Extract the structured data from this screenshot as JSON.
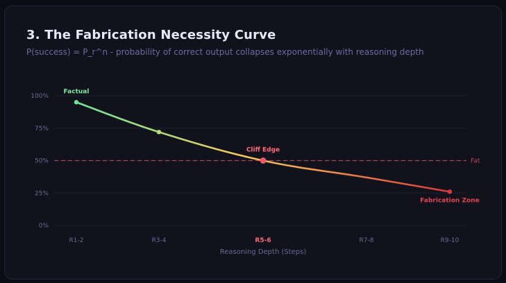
{
  "header": {
    "title": "3. The Fabrication Necessity Curve",
    "subtitle": "P(success) = P_r^n - probability of correct output collapses exponentially with reasoning depth"
  },
  "chart_data": {
    "type": "line",
    "xlabel": "Reasoning Depth (Steps)",
    "ylabel": "",
    "categories": [
      "R1-2",
      "R3-4",
      "R5-6",
      "R7-8",
      "R9-10"
    ],
    "highlight_category": "R5-6",
    "y_ticks": [
      "0%",
      "25%",
      "50%",
      "75%",
      "100%"
    ],
    "ylim": [
      0,
      100
    ],
    "grid": true,
    "series": [
      {
        "values": [
          95,
          72,
          50,
          37,
          26
        ]
      }
    ],
    "threshold": {
      "value": 50,
      "label": "Fat",
      "color": "#c0475a"
    },
    "annotations": [
      {
        "index": 0,
        "text": "Factual",
        "color": "#7ee8a2"
      },
      {
        "index": 2,
        "text": "Cliff Edge",
        "color": "#ff6b7a"
      },
      {
        "index": 4,
        "text": "Fabrication Zone",
        "color": "#e0454f"
      }
    ],
    "colors": {
      "gradient_start": "#6ee79a",
      "gradient_mid": "#f4c85c",
      "gradient_end": "#d63a3a",
      "grid": "#20202e",
      "tick": "#6a6a98",
      "highlight": "#ff6b7a"
    }
  }
}
